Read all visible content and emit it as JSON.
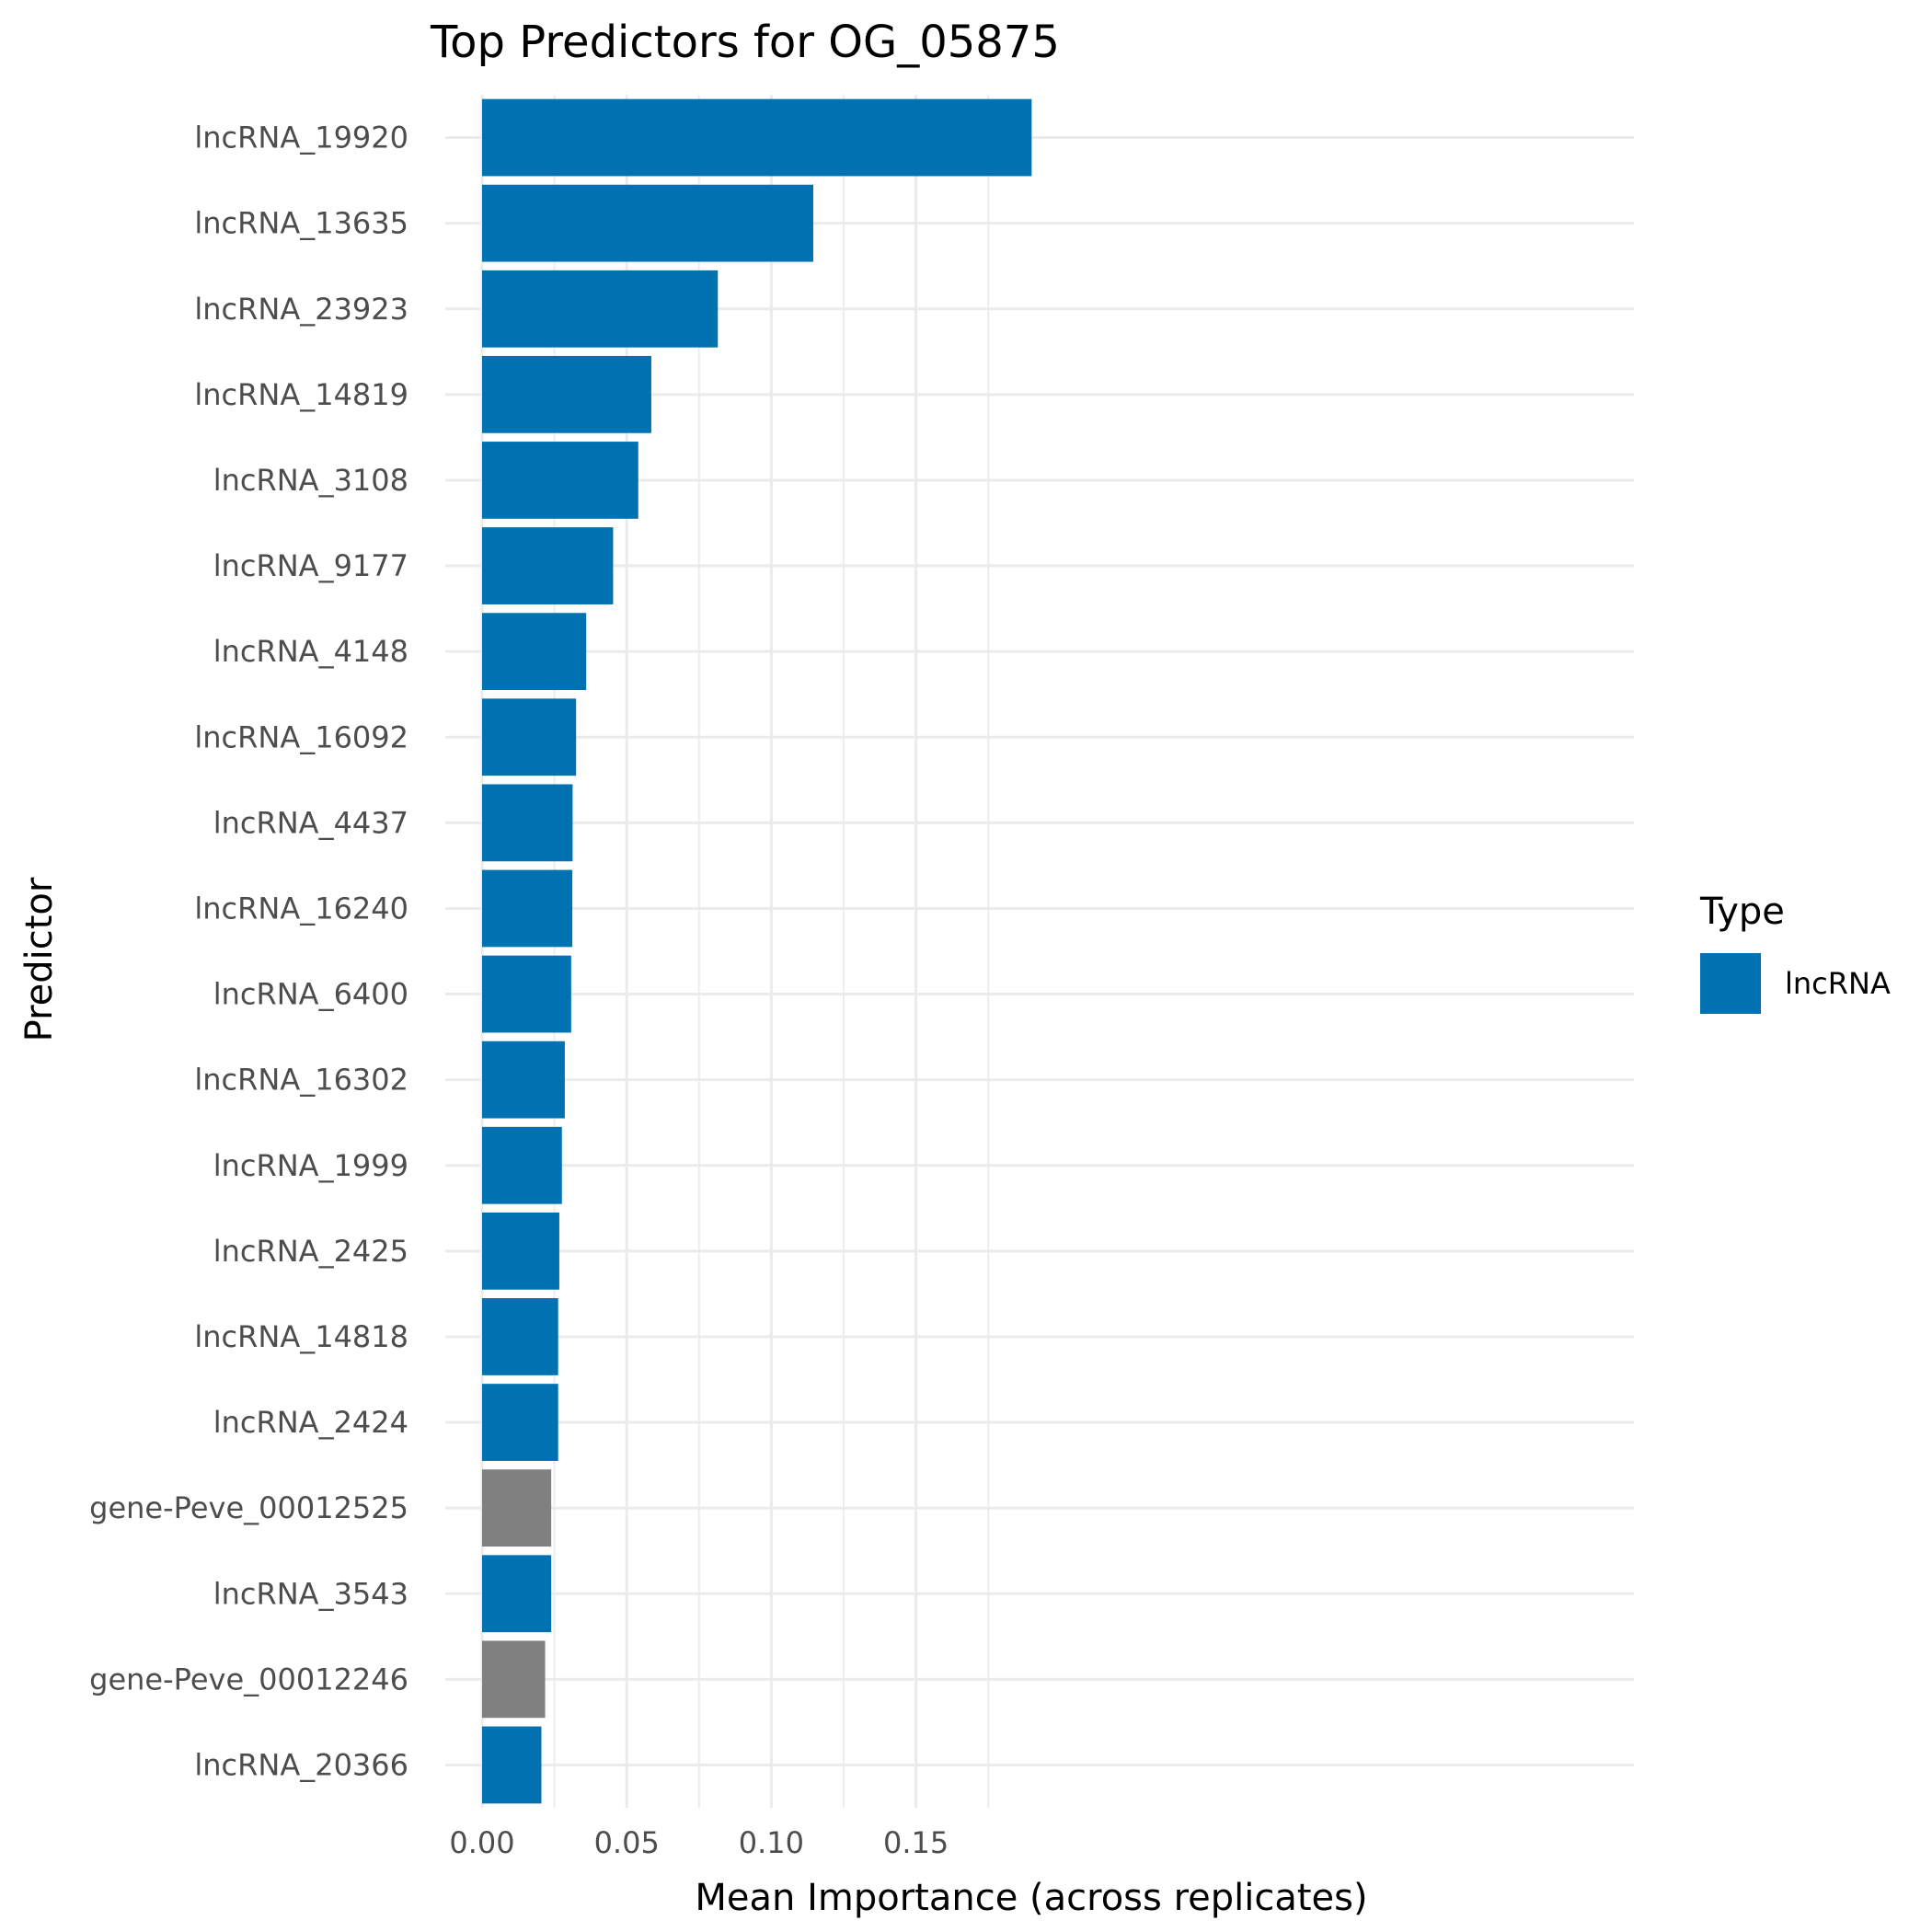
{
  "chart_data": {
    "type": "bar",
    "orientation": "horizontal",
    "title": "Top Predictors for OG_05875",
    "xlabel": "Mean Importance (across replicates)",
    "ylabel": "Predictor",
    "xlim": [
      0,
      0.2
    ],
    "x_ticks": [
      0.0,
      0.05,
      0.1,
      0.15
    ],
    "x_tick_labels": [
      "0.00",
      "0.05",
      "0.10",
      "0.15"
    ],
    "grid": true,
    "categories": [
      "lncRNA_19920",
      "lncRNA_13635",
      "lncRNA_23923",
      "lncRNA_14819",
      "lncRNA_3108",
      "lncRNA_9177",
      "lncRNA_4148",
      "lncRNA_16092",
      "lncRNA_4437",
      "lncRNA_16240",
      "lncRNA_6400",
      "lncRNA_16302",
      "lncRNA_1999",
      "lncRNA_2425",
      "lncRNA_14818",
      "lncRNA_2424",
      "gene-Peve_00012525",
      "lncRNA_3543",
      "gene-Peve_00012246",
      "lncRNA_20366"
    ],
    "values": [
      0.19,
      0.1145,
      0.0815,
      0.0585,
      0.054,
      0.0453,
      0.036,
      0.0325,
      0.0313,
      0.0312,
      0.0308,
      0.0286,
      0.0276,
      0.0267,
      0.0263,
      0.0263,
      0.0239,
      0.0239,
      0.0218,
      0.0205
    ],
    "types": [
      "lncRNA",
      "lncRNA",
      "lncRNA",
      "lncRNA",
      "lncRNA",
      "lncRNA",
      "lncRNA",
      "lncRNA",
      "lncRNA",
      "lncRNA",
      "lncRNA",
      "lncRNA",
      "lncRNA",
      "lncRNA",
      "lncRNA",
      "lncRNA",
      "gene",
      "lncRNA",
      "gene",
      "lncRNA"
    ],
    "colors": {
      "lncRNA": "#0072B2",
      "gene": "#808080"
    },
    "legend": {
      "title": "Type",
      "placement": "right",
      "entries": [
        {
          "label": "lncRNA",
          "color": "#0072B2"
        }
      ]
    },
    "grid_color": "#ebebeb"
  }
}
